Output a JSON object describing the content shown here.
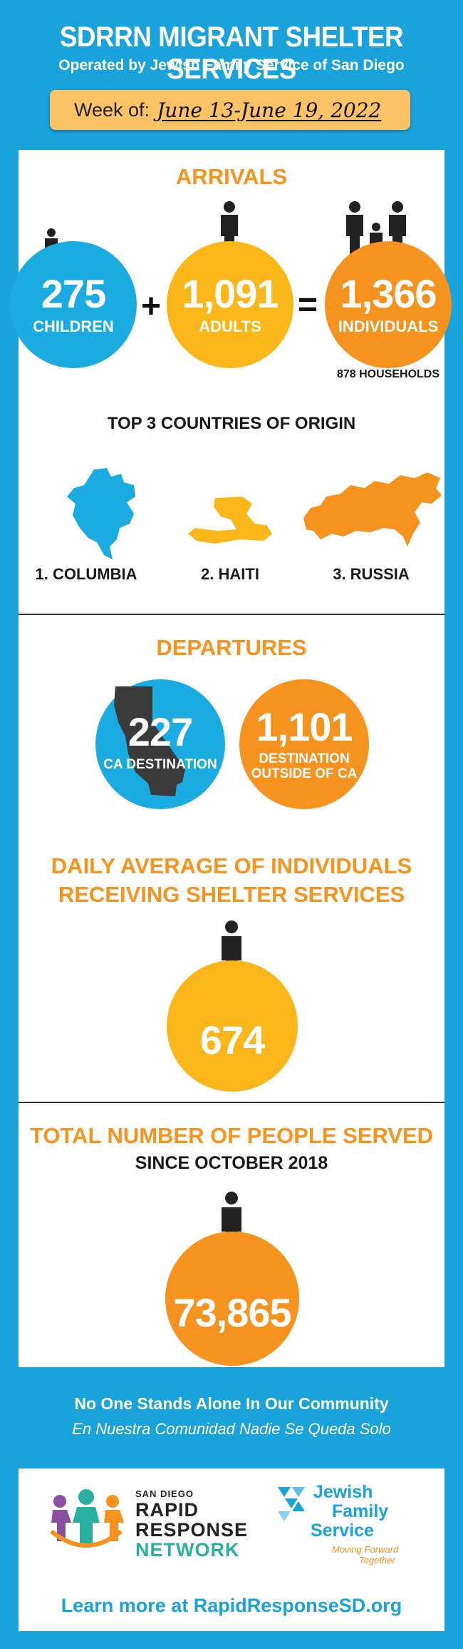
{
  "header": {
    "title": "SDRRN MIGRANT SHELTER SERVICES",
    "subtitle": "Operated by Jewish Family Service of San Diego",
    "week_label": "Week of:",
    "week_value": "June 13-June 19, 2022"
  },
  "arrivals": {
    "title": "ARRIVALS",
    "children_count": "275",
    "children_label": "CHILDREN",
    "plus": "+",
    "adults_count": "1,091",
    "adults_label": "ADULTS",
    "equals": "=",
    "individuals_count": "1,366",
    "individuals_label": "INDIVIDUALS",
    "households": "878 HOUSEHOLDS"
  },
  "countries": {
    "title": "TOP 3 COUNTRIES OF ORIGIN",
    "items": [
      {
        "label": "1. COLUMBIA"
      },
      {
        "label": "2. HAITI"
      },
      {
        "label": "3. RUSSIA"
      }
    ]
  },
  "departures": {
    "title": "DEPARTURES",
    "ca_count": "227",
    "ca_label": "CA DESTINATION",
    "outside_count": "1,101",
    "outside_label_1": "DESTINATION",
    "outside_label_2": "OUTSIDE OF CA"
  },
  "daily": {
    "title_1": "DAILY AVERAGE OF INDIVIDUALS",
    "title_2": "RECEIVING SHELTER SERVICES",
    "value": "674"
  },
  "total": {
    "title": "TOTAL NUMBER OF PEOPLE SERVED",
    "subtitle": "SINCE OCTOBER 2018",
    "value": "73,865"
  },
  "footer": {
    "tagline_en": "No One Stands Alone In Our Community",
    "tagline_es": "En Nuestra Comunidad Nadie Se Queda Solo",
    "rrn_small": "SAN DIEGO",
    "rrn_line1": "RAPID",
    "rrn_line2": "RESPONSE",
    "rrn_line3": "NETWORK",
    "jfs_line1": "Jewish",
    "jfs_line2": "Family",
    "jfs_line3": "Service",
    "jfs_tag1": "Moving Forward",
    "jfs_tag2": "Together",
    "learn_more": "Learn more at RapidResponseSD.org"
  },
  "colors": {
    "background": "#1aa2da",
    "blue": "#1aace0",
    "yellow": "#fbb61a",
    "orange": "#f6921e",
    "week_box": "#fbc266"
  },
  "icons": [
    "person-icon",
    "family-icon",
    "california-map-icon",
    "colombia-map-icon",
    "haiti-map-icon",
    "russia-map-icon",
    "rrn-logo-icon",
    "jfs-logo-icon"
  ]
}
